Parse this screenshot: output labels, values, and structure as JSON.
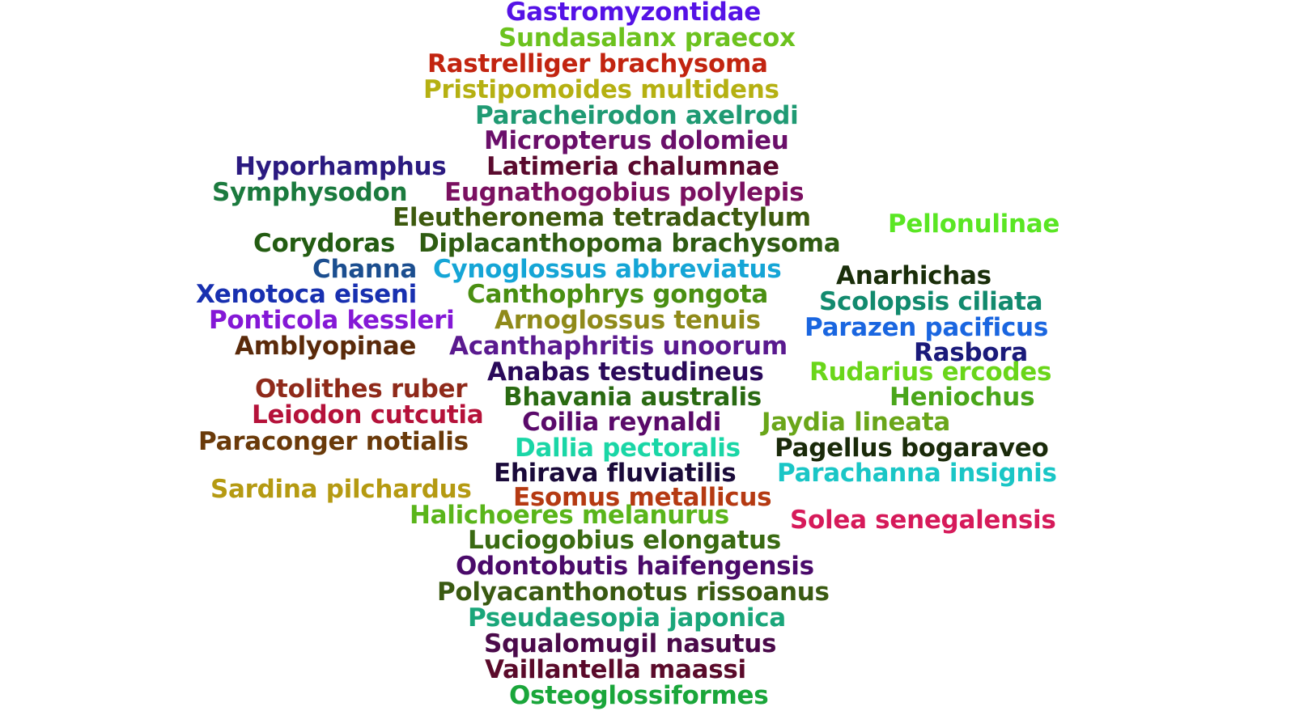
{
  "words": [
    {
      "text": "Gastromyzontidae",
      "color": "#5512e6"
    },
    {
      "text": "Sundasalanx praecox",
      "color": "#6cc21e"
    },
    {
      "text": "Rastrelliger brachysoma",
      "color": "#c22410"
    },
    {
      "text": "Pristipomoides multidens",
      "color": "#b5b012"
    },
    {
      "text": "Paracheirodon axelrodi",
      "color": "#1f9a73"
    },
    {
      "text": "Micropterus dolomieu",
      "color": "#6a0f6a"
    },
    {
      "text": "Hyporhamphus",
      "color": "#2b1a80"
    },
    {
      "text": "Latimeria chalumnae",
      "color": "#5a0a2e"
    },
    {
      "text": "Symphysodon",
      "color": "#1b7a3e"
    },
    {
      "text": "Eugnathogobius polylepis",
      "color": "#7a1060"
    },
    {
      "text": "Eleutheronema tetradactylum",
      "color": "#3d5a0e"
    },
    {
      "text": "Pellonulinae",
      "color": "#5ae623"
    },
    {
      "text": "Corydoras",
      "color": "#235c12"
    },
    {
      "text": "Diplacanthopoma brachysoma",
      "color": "#2f5c12"
    },
    {
      "text": "Channa",
      "color": "#1b4e8f"
    },
    {
      "text": "Cynoglossus abbreviatus",
      "color": "#15a5d6"
    },
    {
      "text": "Anarhichas",
      "color": "#1a2e0a"
    },
    {
      "text": "Xenotoca eiseni",
      "color": "#1830b0"
    },
    {
      "text": "Canthophrys gongota",
      "color": "#4a8f12"
    },
    {
      "text": "Scolopsis ciliata",
      "color": "#128a6e"
    },
    {
      "text": "Ponticola kessleri",
      "color": "#8418d6"
    },
    {
      "text": "Arnoglossus tenuis",
      "color": "#8f8a1a"
    },
    {
      "text": "Parazen pacificus",
      "color": "#1a66e0"
    },
    {
      "text": "Amblyopinae",
      "color": "#5a2a0a"
    },
    {
      "text": "Acanthaphritis unoorum",
      "color": "#5a1a8f"
    },
    {
      "text": "Rasbora",
      "color": "#1a1a7a"
    },
    {
      "text": "Anabas testudineus",
      "color": "#2a0a5a"
    },
    {
      "text": "Rudarius ercodes",
      "color": "#6ad61a"
    },
    {
      "text": "Otolithes ruber",
      "color": "#8f2a1a"
    },
    {
      "text": "Bhavania australis",
      "color": "#2a6a12"
    },
    {
      "text": "Heniochus",
      "color": "#4aa61a"
    },
    {
      "text": "Leiodon cutcutia",
      "color": "#b5123a"
    },
    {
      "text": "Coilia reynaldi",
      "color": "#5a0a6a"
    },
    {
      "text": "Jaydia lineata",
      "color": "#6aa61a"
    },
    {
      "text": "Paraconger notialis",
      "color": "#6a3a0a"
    },
    {
      "text": "Dallia pectoralis",
      "color": "#1ad6a6"
    },
    {
      "text": "Pagellus bogaraveo",
      "color": "#1a2a0a"
    },
    {
      "text": "Ehirava fluviatilis",
      "color": "#1a0a3a"
    },
    {
      "text": "Parachanna insignis",
      "color": "#1ac6c6"
    },
    {
      "text": "Sardina pilchardus",
      "color": "#b59a12"
    },
    {
      "text": "Esomus metallicus",
      "color": "#b53a12"
    },
    {
      "text": "Halichoeres melanurus",
      "color": "#5ab51a"
    },
    {
      "text": "Solea senegalensis",
      "color": "#d61a5a"
    },
    {
      "text": "Luciogobius elongatus",
      "color": "#3a6a12"
    },
    {
      "text": "Odontobutis haifengensis",
      "color": "#4a0a6a"
    },
    {
      "text": "Polyacanthonotus rissoanus",
      "color": "#3a5a12"
    },
    {
      "text": "Pseudaesopia japonica",
      "color": "#1aa67a"
    },
    {
      "text": "Squalomugil nasutus",
      "color": "#4a0a4a"
    },
    {
      "text": "Vaillantella maassi",
      "color": "#5a0a2a"
    },
    {
      "text": "Osteoglossiformes",
      "color": "#1aa63a"
    }
  ]
}
